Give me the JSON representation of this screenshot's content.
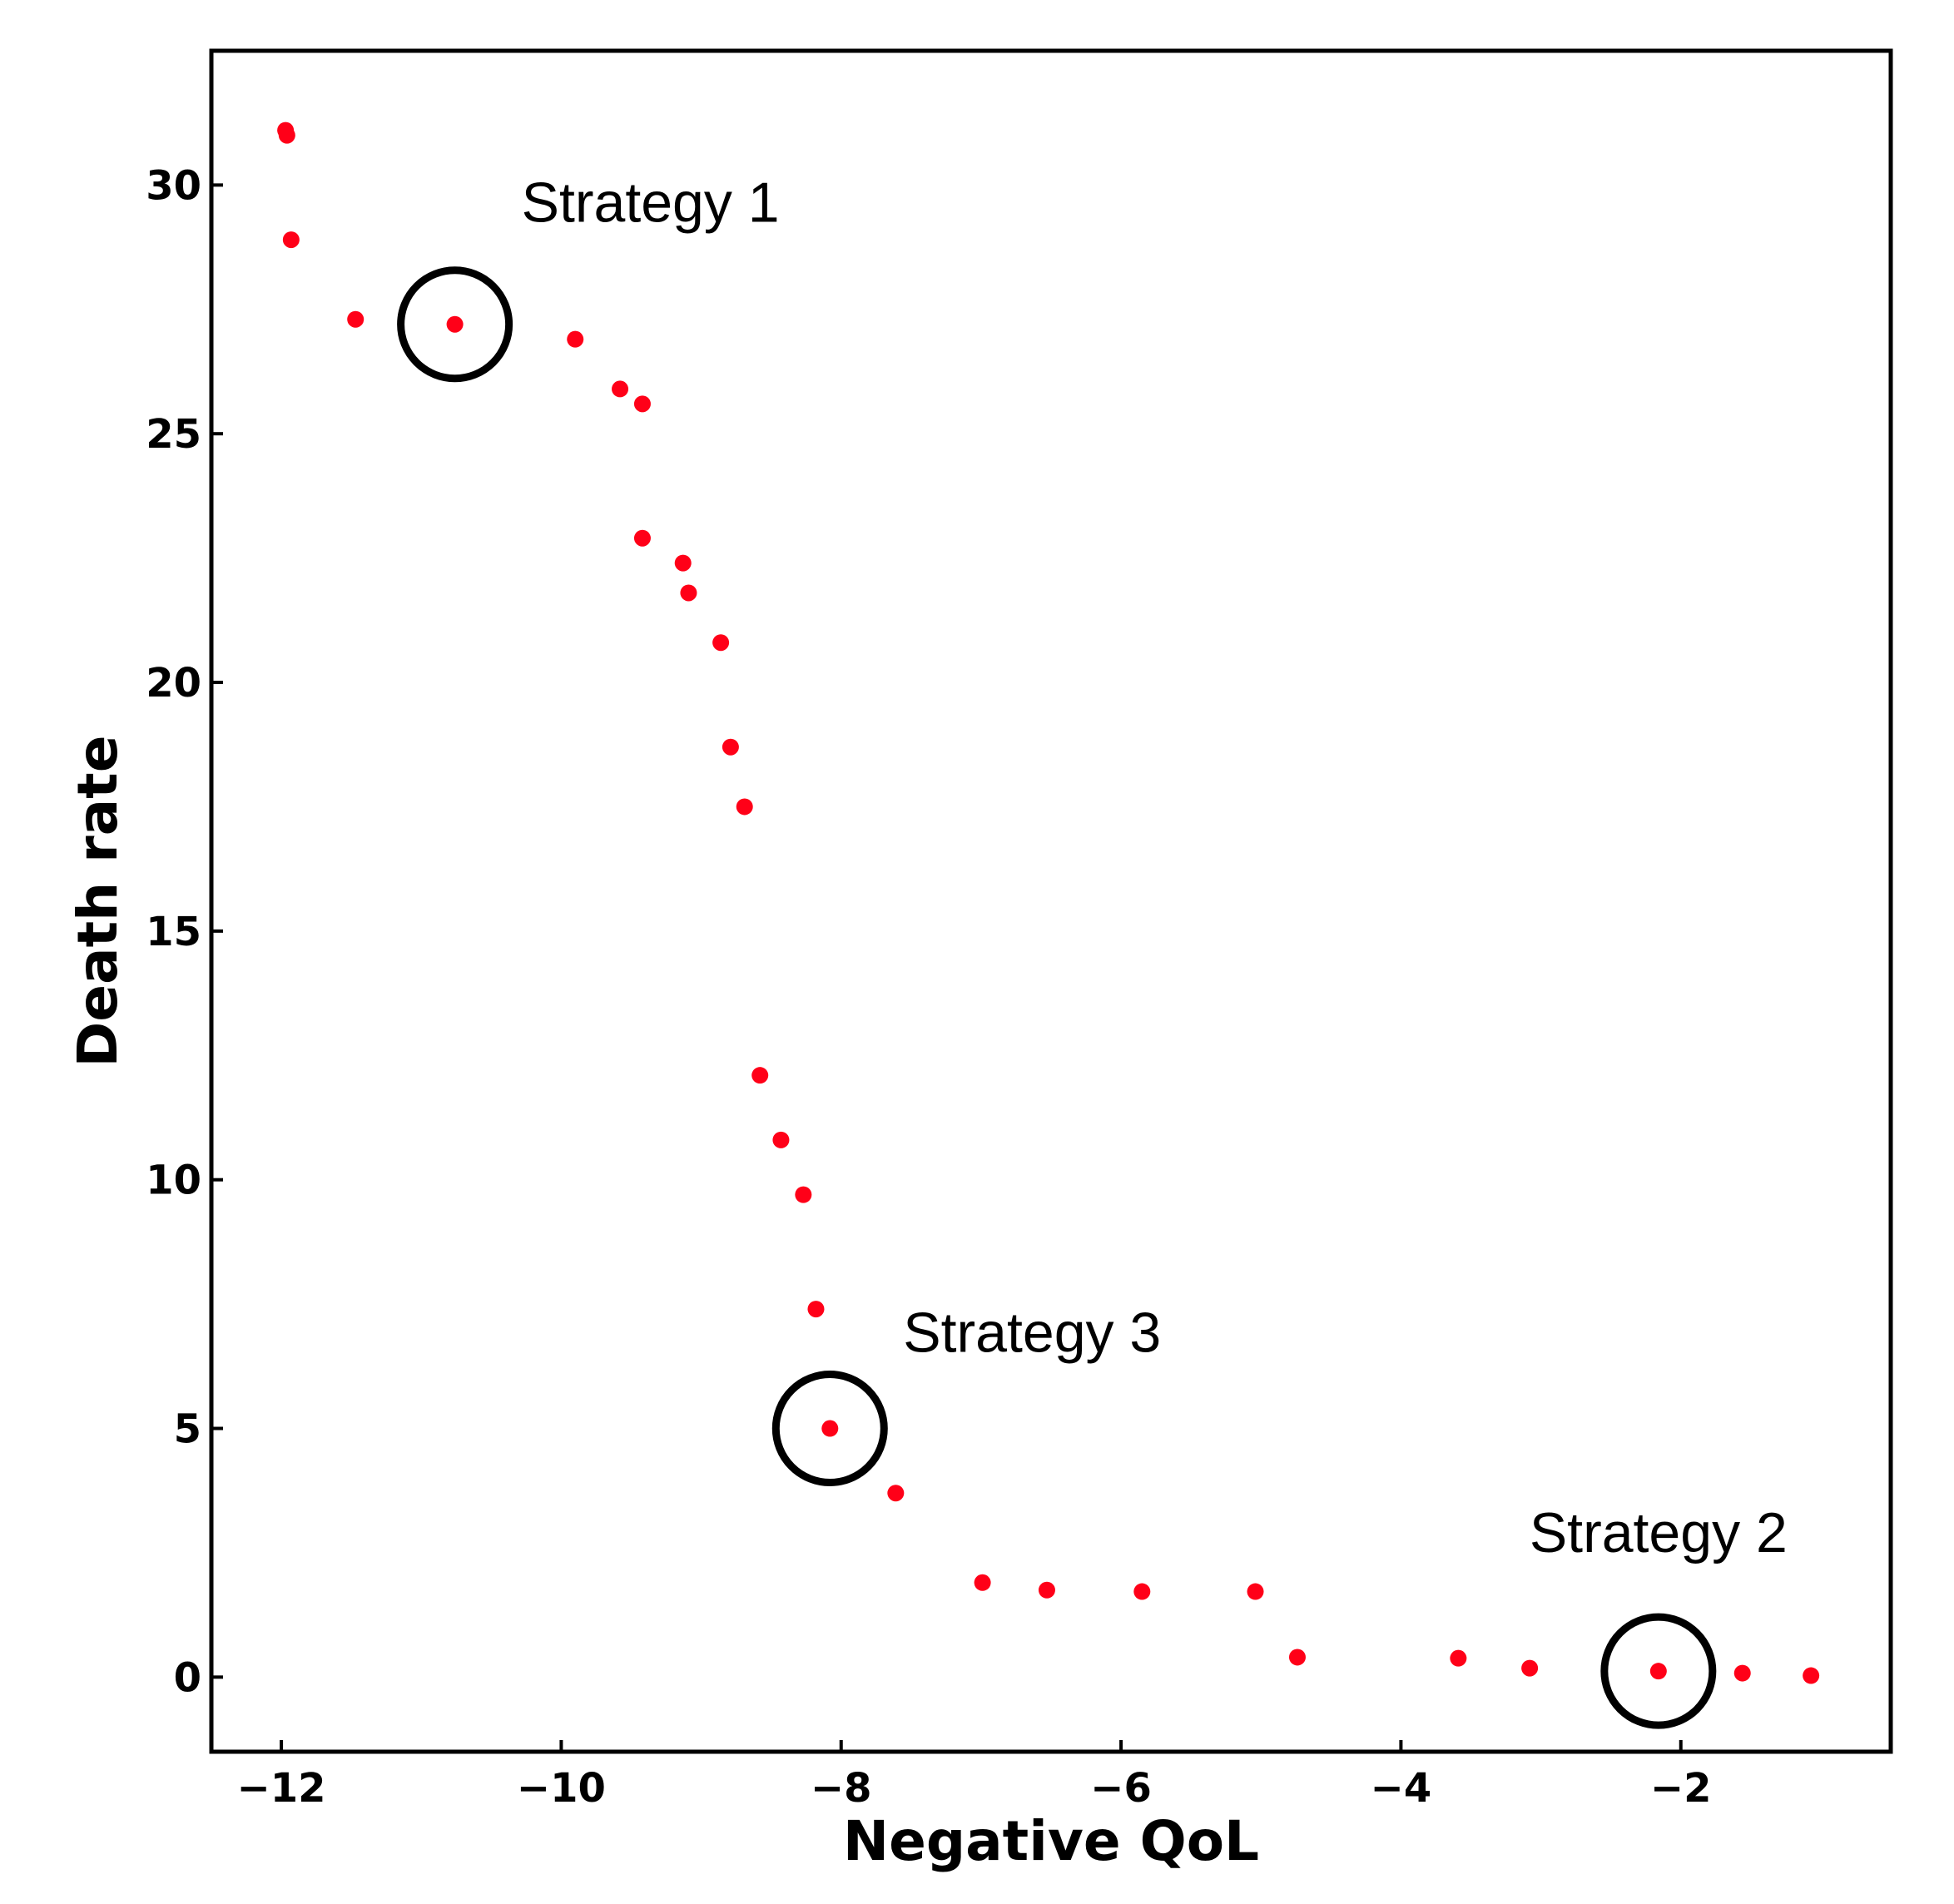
{
  "chart_data": {
    "type": "scatter",
    "title": "",
    "xlabel": "Negative QoL",
    "ylabel": "Death rate",
    "xlim": [
      -12.5,
      -0.5
    ],
    "ylim": [
      -1.5,
      32.7
    ],
    "xticks": [
      -12,
      -10,
      -8,
      -6,
      -4,
      -2
    ],
    "xtick_labels": [
      "−12",
      "−10",
      "−8",
      "−6",
      "−4",
      "−2"
    ],
    "yticks": [
      0,
      5,
      10,
      15,
      20,
      25,
      30
    ],
    "ytick_labels": [
      "0",
      "5",
      "10",
      "15",
      "20",
      "25",
      "30"
    ],
    "grid": false,
    "marker_color": "#ff0018",
    "series": [
      {
        "points": [
          {
            "x": -11.97,
            "y": 31.1
          },
          {
            "x": -11.96,
            "y": 31.0
          },
          {
            "x": -11.93,
            "y": 28.9
          },
          {
            "x": -11.47,
            "y": 27.3
          },
          {
            "x": -10.76,
            "y": 27.2
          },
          {
            "x": -9.9,
            "y": 26.9
          },
          {
            "x": -9.58,
            "y": 25.9
          },
          {
            "x": -9.42,
            "y": 25.6
          },
          {
            "x": -9.42,
            "y": 22.9
          },
          {
            "x": -9.13,
            "y": 22.4
          },
          {
            "x": -9.09,
            "y": 21.8
          },
          {
            "x": -8.86,
            "y": 20.8
          },
          {
            "x": -8.79,
            "y": 18.7
          },
          {
            "x": -8.69,
            "y": 17.5
          },
          {
            "x": -8.58,
            "y": 12.1
          },
          {
            "x": -8.43,
            "y": 10.8
          },
          {
            "x": -8.27,
            "y": 9.7
          },
          {
            "x": -8.18,
            "y": 7.4
          },
          {
            "x": -8.08,
            "y": 5.0
          },
          {
            "x": -7.61,
            "y": 3.7
          },
          {
            "x": -6.99,
            "y": 1.9
          },
          {
            "x": -6.53,
            "y": 1.75
          },
          {
            "x": -5.85,
            "y": 1.72
          },
          {
            "x": -5.04,
            "y": 1.72
          },
          {
            "x": -4.74,
            "y": 0.4
          },
          {
            "x": -3.59,
            "y": 0.38
          },
          {
            "x": -3.08,
            "y": 0.18
          },
          {
            "x": -2.16,
            "y": 0.12
          },
          {
            "x": -1.56,
            "y": 0.08
          },
          {
            "x": -1.07,
            "y": 0.03
          }
        ]
      }
    ],
    "annotations": [
      {
        "text": "Strategy 1",
        "x": -10.76,
        "y": 27.2
      },
      {
        "text": "Strategy 3",
        "x": -8.08,
        "y": 5.0
      },
      {
        "text": "Strategy 2",
        "x": -2.16,
        "y": 0.12
      }
    ]
  }
}
